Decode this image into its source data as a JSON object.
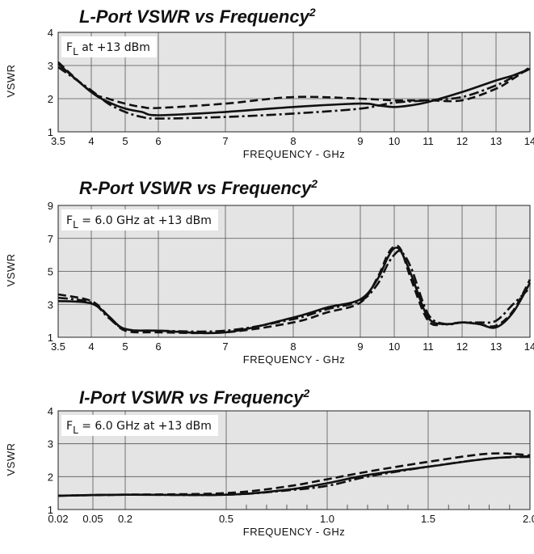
{
  "chart_data": [
    {
      "type": "line",
      "title": "L-Port VSWR vs Frequency",
      "title_superscript": "2",
      "xlabel": "FREQUENCY - GHz",
      "ylabel": "VSWR",
      "annotation_prefix": "F",
      "annotation_subscript": "L",
      "annotation_suffix": " at +13 dBm",
      "ylim": [
        1,
        4
      ],
      "yticks": [
        "1",
        "2",
        "3",
        "4"
      ],
      "xtick_labels": [
        "3.5",
        "4",
        "5",
        "6",
        "7",
        "8",
        "9",
        "10",
        "11",
        "12",
        "13",
        "14"
      ],
      "xtick_values": [
        3.5,
        4,
        5,
        6,
        7,
        8,
        9,
        10,
        11,
        12,
        13,
        14
      ],
      "xlim": [
        3.5,
        14
      ],
      "grid": true,
      "series": [
        {
          "style": "solid",
          "x": [
            3.5,
            4,
            4.5,
            5,
            5.5,
            6,
            7,
            8,
            9,
            9.5,
            10,
            10.5,
            11,
            12,
            13,
            13.5,
            14
          ],
          "y": [
            3.05,
            2.2,
            1.9,
            1.7,
            1.6,
            1.5,
            1.6,
            1.75,
            1.85,
            1.8,
            1.75,
            1.8,
            1.9,
            2.2,
            2.55,
            2.7,
            2.9
          ]
        },
        {
          "style": "dashed",
          "x": [
            3.5,
            4,
            4.5,
            5,
            5.5,
            6,
            7,
            8,
            9,
            10,
            11,
            12,
            13,
            13.5,
            14
          ],
          "y": [
            3.1,
            2.2,
            2.0,
            1.85,
            1.75,
            1.72,
            1.85,
            2.05,
            2.0,
            1.95,
            1.95,
            1.95,
            2.3,
            2.6,
            2.95
          ]
        },
        {
          "style": "dashdot",
          "x": [
            3.5,
            4,
            4.5,
            5,
            5.5,
            6,
            7,
            8,
            9,
            10,
            11,
            12,
            13,
            13.5,
            14
          ],
          "y": [
            2.95,
            2.25,
            1.85,
            1.6,
            1.45,
            1.4,
            1.45,
            1.55,
            1.7,
            1.88,
            1.95,
            2.05,
            2.4,
            2.65,
            2.9
          ]
        }
      ]
    },
    {
      "type": "line",
      "title": "R-Port VSWR vs Frequency",
      "title_superscript": "2",
      "xlabel": "FREQUENCY - GHz",
      "ylabel": "VSWR",
      "annotation_prefix": "F",
      "annotation_subscript": "L",
      "annotation_suffix": " = 6.0 GHz at +13 dBm",
      "ylim": [
        1,
        9
      ],
      "yticks": [
        "1",
        "3",
        "5",
        "7",
        "9"
      ],
      "xtick_labels": [
        "3.5",
        "4",
        "5",
        "6",
        "7",
        "8",
        "9",
        "10",
        "11",
        "12",
        "13",
        "14"
      ],
      "xtick_values": [
        3.5,
        4,
        5,
        6,
        7,
        8,
        9,
        10,
        11,
        12,
        13,
        14
      ],
      "xlim": [
        3.5,
        14
      ],
      "grid": true,
      "series": [
        {
          "style": "solid",
          "x": [
            3.5,
            4,
            4.5,
            5,
            6,
            7,
            8,
            8.5,
            9,
            9.5,
            9.8,
            10,
            10.2,
            10.5,
            11,
            11.5,
            12,
            12.5,
            13,
            13.5,
            14
          ],
          "y": [
            3.2,
            3.05,
            2.3,
            1.5,
            1.4,
            1.3,
            2.2,
            2.8,
            3.3,
            4.5,
            5.8,
            6.4,
            6.2,
            4.8,
            2.2,
            1.8,
            1.9,
            1.8,
            1.6,
            2.5,
            4.3
          ]
        },
        {
          "style": "dashed",
          "x": [
            3.5,
            4,
            4.5,
            5,
            6,
            7,
            8,
            8.5,
            9,
            9.5,
            9.8,
            10,
            10.2,
            10.5,
            11,
            11.5,
            12,
            12.5,
            13,
            13.5,
            14
          ],
          "y": [
            3.6,
            3.2,
            2.3,
            1.4,
            1.3,
            1.3,
            1.9,
            2.5,
            3.1,
            4.6,
            6.0,
            6.5,
            6.3,
            4.5,
            2.0,
            1.8,
            1.9,
            1.8,
            1.7,
            2.6,
            4.5
          ]
        },
        {
          "style": "dashdot",
          "x": [
            3.5,
            4,
            4.5,
            5,
            6,
            7,
            8,
            8.5,
            9,
            9.5,
            9.8,
            10,
            10.2,
            10.5,
            11,
            11.5,
            12,
            12.5,
            13,
            13.5,
            14
          ],
          "y": [
            3.4,
            3.1,
            2.2,
            1.5,
            1.4,
            1.4,
            2.1,
            2.7,
            3.2,
            4.2,
            5.4,
            6.0,
            6.2,
            5.2,
            2.4,
            1.8,
            1.9,
            1.9,
            2.0,
            3.0,
            4.0
          ]
        }
      ]
    },
    {
      "type": "line",
      "title": "I-Port VSWR vs Frequency",
      "title_superscript": "2",
      "xlabel": "FREQUENCY - GHz",
      "ylabel": "VSWR",
      "annotation_prefix": "F",
      "annotation_subscript": "L",
      "annotation_suffix": " = 6.0 GHz at +13 dBm",
      "ylim": [
        1,
        4
      ],
      "yticks": [
        "1",
        "2",
        "3",
        "4"
      ],
      "xtick_labels": [
        "0.02",
        "0.05",
        "0.2",
        "0.5",
        "1.0",
        "1.5",
        "2.0"
      ],
      "xtick_values": [
        0.02,
        0.05,
        0.2,
        0.5,
        1.0,
        1.5,
        2.0
      ],
      "xlim": [
        0.02,
        2.0
      ],
      "grid": true,
      "series": [
        {
          "style": "solid",
          "x": [
            0.02,
            0.2,
            0.5,
            0.8,
            1.0,
            1.2,
            1.5,
            1.8,
            2.0
          ],
          "y": [
            1.42,
            1.45,
            1.45,
            1.6,
            1.8,
            2.05,
            2.3,
            2.55,
            2.62
          ]
        },
        {
          "style": "dashed",
          "x": [
            0.02,
            0.2,
            0.5,
            0.8,
            1.0,
            1.2,
            1.5,
            1.8,
            2.0
          ],
          "y": [
            1.42,
            1.45,
            1.5,
            1.7,
            1.92,
            2.15,
            2.45,
            2.7,
            2.65
          ]
        },
        {
          "style": "dashdot",
          "x": [
            0.02,
            0.2,
            0.5,
            0.8,
            1.0,
            1.2,
            1.5,
            1.8,
            2.0
          ],
          "y": [
            1.42,
            1.45,
            1.45,
            1.58,
            1.72,
            2.0,
            2.3,
            2.55,
            2.6
          ]
        }
      ]
    }
  ]
}
